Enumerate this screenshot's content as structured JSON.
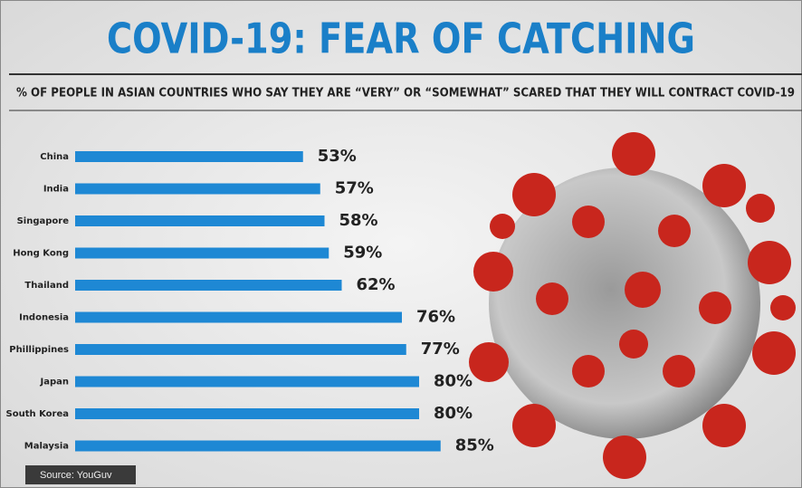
{
  "chart_data": {
    "type": "bar",
    "orientation": "horizontal",
    "title": "COVID-19: FEAR OF CATCHING",
    "subtitle": "% OF PEOPLE IN ASIAN COUNTRIES WHO SAY THEY ARE “VERY” OR “SOMEWHAT” SCARED THAT THEY WILL CONTRACT COVID-19",
    "source": "Source: YouGuv",
    "categories": [
      "China",
      "India",
      "Singapore",
      "Hong Kong",
      "Thailand",
      "Indonesia",
      "Phillippines",
      "Japan",
      "South Korea",
      "Malaysia"
    ],
    "values": [
      53,
      57,
      58,
      59,
      62,
      76,
      77,
      80,
      80,
      85
    ],
    "value_labels": [
      "53%",
      "57%",
      "58%",
      "59%",
      "62%",
      "76%",
      "77%",
      "80%",
      "80%",
      "85%"
    ],
    "color": "#1e88d4"
  }
}
